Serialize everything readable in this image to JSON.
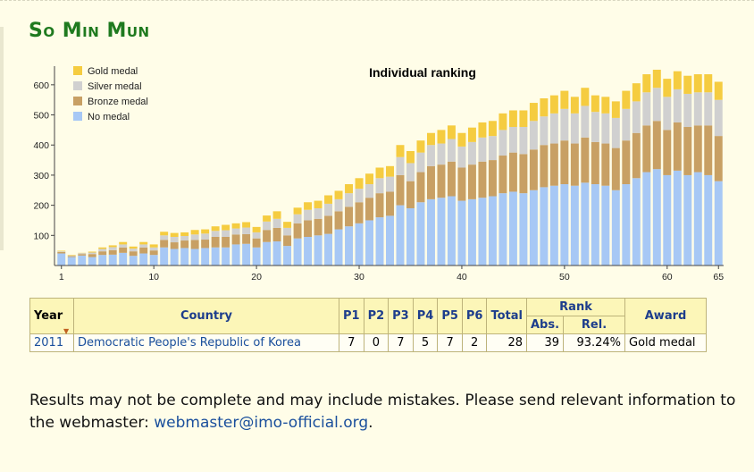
{
  "page": {
    "heading": "So Min Mun"
  },
  "chart_data": {
    "type": "bar",
    "stacked": true,
    "title": "Individual ranking",
    "legend_position": "top-left",
    "xlabel": "",
    "ylabel": "",
    "ylim": [
      0,
      650
    ],
    "y_ticks": [
      100,
      200,
      300,
      400,
      500,
      600
    ],
    "x_ticks": [
      1,
      10,
      20,
      30,
      40,
      50,
      60,
      65
    ],
    "categories": [
      1,
      2,
      3,
      4,
      5,
      6,
      7,
      8,
      9,
      10,
      11,
      12,
      13,
      14,
      15,
      16,
      17,
      18,
      19,
      20,
      21,
      22,
      23,
      24,
      25,
      26,
      27,
      28,
      29,
      30,
      31,
      32,
      33,
      34,
      35,
      36,
      37,
      38,
      39,
      40,
      41,
      42,
      43,
      44,
      45,
      46,
      47,
      48,
      49,
      50,
      51,
      52,
      53,
      54,
      55,
      56,
      57,
      58,
      59,
      60,
      61,
      62,
      63,
      64,
      65
    ],
    "series": [
      {
        "name": "No medal",
        "color": "#a7c8f5",
        "values": [
          40,
          28,
          33,
          28,
          35,
          36,
          42,
          32,
          40,
          35,
          60,
          55,
          58,
          55,
          58,
          60,
          60,
          70,
          72,
          60,
          78,
          80,
          65,
          90,
          95,
          100,
          105,
          120,
          130,
          140,
          150,
          160,
          165,
          200,
          190,
          210,
          220,
          225,
          230,
          215,
          220,
          225,
          230,
          240,
          245,
          240,
          250,
          260,
          265,
          270,
          265,
          275,
          270,
          265,
          250,
          270,
          290,
          310,
          320,
          300,
          315,
          300,
          310,
          300,
          280
        ]
      },
      {
        "name": "Bronze medal",
        "color": "#c8a064",
        "values": [
          5,
          3,
          5,
          10,
          12,
          15,
          18,
          15,
          20,
          15,
          25,
          22,
          25,
          30,
          28,
          35,
          35,
          33,
          32,
          30,
          40,
          45,
          35,
          50,
          55,
          55,
          60,
          60,
          65,
          70,
          75,
          80,
          80,
          100,
          90,
          100,
          110,
          110,
          115,
          110,
          115,
          120,
          120,
          125,
          130,
          130,
          135,
          140,
          140,
          145,
          140,
          150,
          140,
          140,
          140,
          145,
          150,
          155,
          160,
          150,
          160,
          160,
          155,
          165,
          150
        ]
      },
      {
        "name": "Silver medal",
        "color": "#d0d0d0",
        "values": [
          2,
          2,
          3,
          5,
          8,
          10,
          10,
          9,
          10,
          10,
          15,
          18,
          15,
          18,
          20,
          20,
          22,
          20,
          22,
          20,
          28,
          30,
          25,
          30,
          35,
          35,
          40,
          40,
          45,
          45,
          45,
          50,
          50,
          60,
          60,
          65,
          70,
          70,
          75,
          70,
          75,
          80,
          80,
          85,
          85,
          90,
          95,
          95,
          100,
          105,
          100,
          105,
          100,
          100,
          100,
          105,
          105,
          110,
          110,
          110,
          110,
          110,
          110,
          110,
          120
        ]
      },
      {
        "name": "Gold medal",
        "color": "#f5cc40",
        "values": [
          2,
          2,
          1,
          3,
          5,
          6,
          8,
          7,
          8,
          10,
          12,
          13,
          12,
          15,
          14,
          15,
          18,
          17,
          18,
          18,
          20,
          25,
          20,
          22,
          25,
          25,
          28,
          28,
          30,
          35,
          35,
          35,
          35,
          40,
          40,
          40,
          40,
          45,
          45,
          45,
          48,
          50,
          50,
          55,
          55,
          55,
          60,
          60,
          60,
          60,
          55,
          60,
          55,
          55,
          55,
          60,
          60,
          60,
          60,
          60,
          60,
          60,
          60,
          60,
          60
        ]
      }
    ]
  },
  "table": {
    "headers": {
      "year": "Year",
      "country": "Country",
      "p1": "P1",
      "p2": "P2",
      "p3": "P3",
      "p4": "P4",
      "p5": "P5",
      "p6": "P6",
      "total": "Total",
      "rank": "Rank",
      "abs": "Abs.",
      "rel": "Rel.",
      "award": "Award"
    },
    "rows": [
      {
        "year": "2011",
        "country": "Democratic People's Republic of Korea",
        "p1": "7",
        "p2": "0",
        "p3": "7",
        "p4": "5",
        "p5": "7",
        "p6": "2",
        "total": "28",
        "abs": "39",
        "rel": "93.24%",
        "award": "Gold medal"
      }
    ]
  },
  "note": {
    "text": "Results may not be complete and may include mistakes. Please send relevant information to the webmaster: ",
    "email": "webmaster@imo-official.org",
    "end": "."
  }
}
